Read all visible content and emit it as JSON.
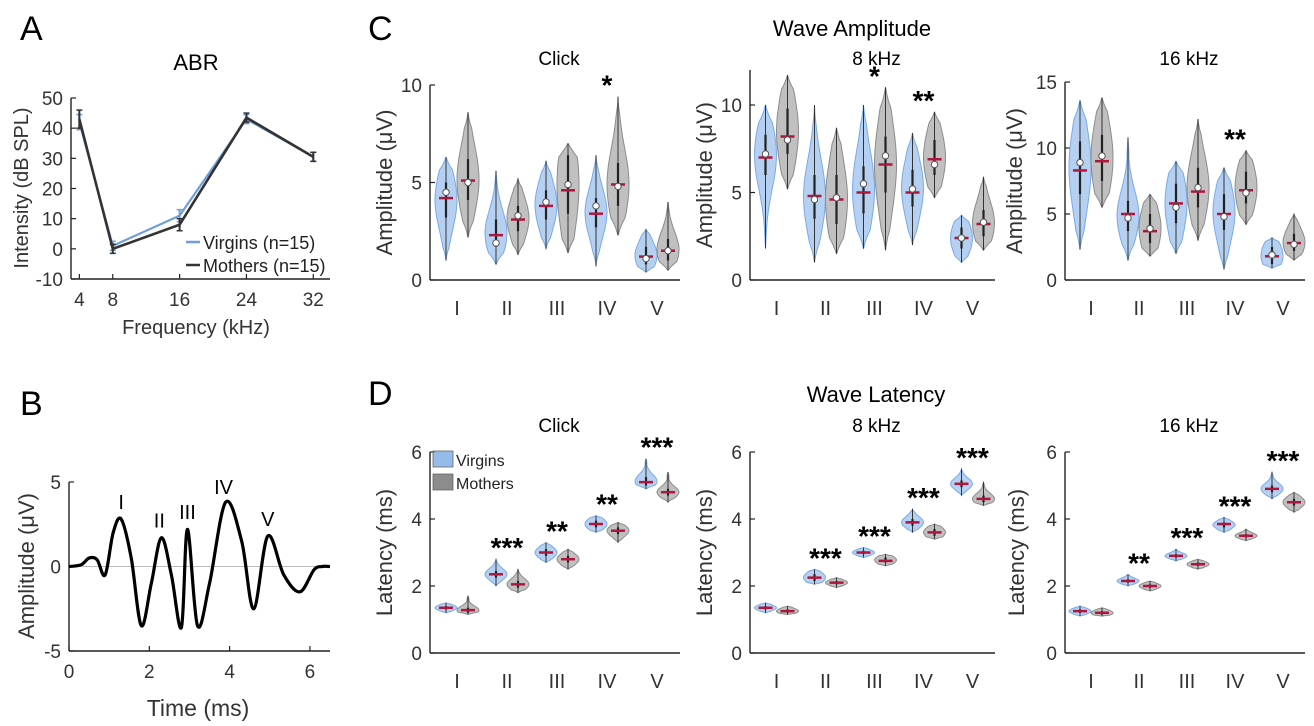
{
  "figure": {
    "panel_letters": [
      "A",
      "B",
      "C",
      "D"
    ],
    "wave_amplitude_title": "Wave Amplitude",
    "wave_latency_title": "Wave Latency"
  },
  "colors": {
    "virgins": "#7aaae6",
    "mothers": "#8c8c8c",
    "virgins_line": "#6f9fd8",
    "mothers_line": "#333333",
    "median": "#b0163d",
    "trace": "#000000"
  },
  "chart_data": [
    {
      "id": "A",
      "type": "line",
      "title": "ABR",
      "xlabel": "Frequency (kHz)",
      "ylabel": "Intensity (dB SPL)",
      "x": [
        4,
        8,
        16,
        24,
        32
      ],
      "xlim": [
        3,
        34
      ],
      "ylim": [
        -10,
        50
      ],
      "xticks": [
        4,
        8,
        16,
        24,
        32
      ],
      "yticks": [
        -10,
        0,
        10,
        20,
        30,
        40,
        50
      ],
      "series": [
        {
          "name": "Virgins (n=15)",
          "values": [
            42,
            1,
            11,
            43,
            30.5
          ],
          "err": [
            2.5,
            1.5,
            2.0,
            1.5,
            1.5
          ]
        },
        {
          "name": "Mothers (n=15)",
          "values": [
            43,
            0,
            8,
            43.5,
            30.5
          ],
          "err": [
            3.0,
            1.5,
            2.0,
            1.5,
            1.5
          ]
        }
      ],
      "legend": "bottom-right",
      "grid": false
    },
    {
      "id": "B",
      "type": "line",
      "xlabel": "Time (ms)",
      "ylabel": "Amplitude (μV)",
      "xlim": [
        0,
        6.5
      ],
      "ylim": [
        -5,
        5
      ],
      "xticks": [
        0,
        2,
        4,
        6
      ],
      "yticks": [
        -5,
        0,
        5
      ],
      "x": [
        0,
        0.3,
        0.5,
        0.7,
        0.9,
        1.1,
        1.3,
        1.55,
        1.8,
        2.05,
        2.3,
        2.55,
        2.8,
        2.95,
        3.2,
        3.5,
        3.9,
        4.3,
        4.6,
        4.95,
        5.35,
        5.75,
        6.1,
        6.3,
        6.5
      ],
      "values": [
        0,
        0.1,
        0.5,
        0.4,
        -0.5,
        2.0,
        2.8,
        0.5,
        -3.5,
        -1.0,
        1.7,
        -0.5,
        -3.6,
        2.2,
        -3.5,
        -1.0,
        3.8,
        1.5,
        -2.5,
        1.8,
        -0.5,
        -1.5,
        -0.2,
        0,
        0
      ],
      "annotations": [
        {
          "text": "I",
          "x": 1.3,
          "y": 3.4
        },
        {
          "text": "II",
          "x": 2.25,
          "y": 2.3
        },
        {
          "text": "III",
          "x": 2.95,
          "y": 2.8
        },
        {
          "text": "IV",
          "x": 3.85,
          "y": 4.3
        },
        {
          "text": "V",
          "x": 4.95,
          "y": 2.4
        }
      ]
    },
    {
      "id": "C1",
      "type": "violin",
      "title": "Click",
      "ylabel": "Amplitude (μV)",
      "categories": [
        "I",
        "II",
        "III",
        "IV",
        "V"
      ],
      "ylim": [
        0,
        10
      ],
      "yticks": [
        0,
        5,
        10
      ],
      "virgins": {
        "median": [
          4.2,
          2.3,
          3.8,
          3.4,
          1.2
        ],
        "mean": [
          4.5,
          1.9,
          4.0,
          3.8,
          1.1
        ],
        "q": [
          [
            3.2,
            5.0
          ],
          [
            1.7,
            3.1
          ],
          [
            3.1,
            4.6
          ],
          [
            2.7,
            4.2
          ],
          [
            0.8,
            1.7
          ]
        ],
        "range": [
          [
            1.0,
            6.3
          ],
          [
            0.8,
            5.6
          ],
          [
            1.6,
            6.1
          ],
          [
            0.7,
            6.4
          ],
          [
            0.4,
            2.6
          ]
        ]
      },
      "mothers": {
        "median": [
          5.1,
          3.1,
          4.6,
          4.9,
          1.5
        ],
        "mean": [
          5.0,
          3.3,
          4.9,
          4.8,
          1.5
        ],
        "q": [
          [
            4.1,
            6.2
          ],
          [
            2.5,
            3.8
          ],
          [
            3.4,
            6.4
          ],
          [
            3.8,
            6.0
          ],
          [
            1.0,
            2.1
          ]
        ],
        "range": [
          [
            2.2,
            8.6
          ],
          [
            1.3,
            5.2
          ],
          [
            1.4,
            7.0
          ],
          [
            2.3,
            9.4
          ],
          [
            0.5,
            4.0
          ]
        ]
      },
      "significance": [
        "",
        "",
        "",
        "*",
        ""
      ]
    },
    {
      "id": "C2",
      "type": "violin",
      "title": "8 kHz",
      "ylabel": "Amplitude (μV)",
      "categories": [
        "I",
        "II",
        "III",
        "IV",
        "V"
      ],
      "ylim": [
        0,
        12
      ],
      "yticks": [
        0,
        5,
        10
      ],
      "virgins": {
        "median": [
          7.0,
          4.8,
          5.0,
          5.0,
          2.4
        ],
        "mean": [
          7.2,
          4.6,
          5.5,
          5.2,
          2.4
        ],
        "q": [
          [
            6.0,
            8.3
          ],
          [
            3.5,
            6.0
          ],
          [
            3.8,
            6.5
          ],
          [
            4.2,
            6.3
          ],
          [
            1.8,
            3.0
          ]
        ],
        "range": [
          [
            1.8,
            10.0
          ],
          [
            1.0,
            10.0
          ],
          [
            1.8,
            10.0
          ],
          [
            2.0,
            8.4
          ],
          [
            1.0,
            3.7
          ]
        ]
      },
      "mothers": {
        "median": [
          8.2,
          4.6,
          6.6,
          6.9,
          3.2
        ],
        "mean": [
          8.0,
          4.7,
          7.1,
          6.6,
          3.3
        ],
        "q": [
          [
            7.2,
            9.8
          ],
          [
            3.2,
            6.0
          ],
          [
            5.0,
            8.2
          ],
          [
            6.0,
            8.0
          ],
          [
            2.5,
            4.0
          ]
        ],
        "range": [
          [
            5.2,
            11.7
          ],
          [
            1.5,
            8.7
          ],
          [
            1.7,
            11.0
          ],
          [
            4.7,
            9.6
          ],
          [
            1.7,
            5.9
          ]
        ]
      },
      "significance": [
        "",
        "",
        "*",
        "**",
        ""
      ]
    },
    {
      "id": "C3",
      "type": "violin",
      "title": "16 kHz",
      "ylabel": "Amplitude (μV)",
      "categories": [
        "I",
        "II",
        "III",
        "IV",
        "V"
      ],
      "ylim": [
        0,
        15
      ],
      "yticks": [
        0,
        5,
        10,
        15
      ],
      "virgins": {
        "median": [
          8.3,
          5.0,
          5.8,
          5.0,
          1.8
        ],
        "mean": [
          8.9,
          4.7,
          5.5,
          4.8,
          1.9
        ],
        "q": [
          [
            6.5,
            10.5
          ],
          [
            3.7,
            6.0
          ],
          [
            4.3,
            7.3
          ],
          [
            3.8,
            6.5
          ],
          [
            1.2,
            2.5
          ]
        ],
        "range": [
          [
            2.3,
            13.6
          ],
          [
            1.5,
            10.8
          ],
          [
            2.0,
            9.0
          ],
          [
            0.8,
            8.5
          ],
          [
            0.9,
            3.2
          ]
        ]
      },
      "mothers": {
        "median": [
          9.0,
          3.7,
          6.7,
          6.8,
          2.8
        ],
        "mean": [
          9.4,
          3.9,
          7.0,
          6.6,
          2.7
        ],
        "q": [
          [
            7.5,
            11.0
          ],
          [
            2.8,
            5.0
          ],
          [
            5.5,
            8.5
          ],
          [
            5.8,
            8.2
          ],
          [
            2.2,
            3.5
          ]
        ],
        "range": [
          [
            5.5,
            13.8
          ],
          [
            1.8,
            6.5
          ],
          [
            3.0,
            12.2
          ],
          [
            4.2,
            9.8
          ],
          [
            1.5,
            5.0
          ]
        ]
      },
      "significance": [
        "",
        "",
        "",
        "**",
        ""
      ]
    },
    {
      "id": "D1",
      "type": "violin",
      "title": "Click",
      "ylabel": "Latency (ms)",
      "categories": [
        "I",
        "II",
        "III",
        "IV",
        "V"
      ],
      "ylim": [
        0,
        6
      ],
      "yticks": [
        0,
        2,
        4,
        6
      ],
      "legend": [
        "Virgins",
        "Mothers"
      ],
      "virgins": {
        "median": [
          1.35,
          2.35,
          3.0,
          3.85,
          5.1
        ],
        "mean": [
          1.35,
          2.35,
          3.0,
          3.85,
          5.1
        ],
        "q": [
          [
            1.3,
            1.4
          ],
          [
            2.25,
            2.45
          ],
          [
            2.9,
            3.1
          ],
          [
            3.75,
            3.95
          ],
          [
            5.0,
            5.25
          ]
        ],
        "range": [
          [
            1.2,
            1.5
          ],
          [
            2.0,
            2.8
          ],
          [
            2.7,
            3.3
          ],
          [
            3.6,
            4.1
          ],
          [
            4.9,
            5.8
          ]
        ]
      },
      "mothers": {
        "median": [
          1.28,
          2.05,
          2.8,
          3.65,
          4.8
        ],
        "mean": [
          1.28,
          2.05,
          2.8,
          3.65,
          4.8
        ],
        "q": [
          [
            1.2,
            1.35
          ],
          [
            1.95,
            2.15
          ],
          [
            2.7,
            2.9
          ],
          [
            3.55,
            3.75
          ],
          [
            4.7,
            4.9
          ]
        ],
        "range": [
          [
            1.15,
            1.7
          ],
          [
            1.8,
            2.5
          ],
          [
            2.5,
            3.1
          ],
          [
            3.3,
            3.9
          ],
          [
            4.5,
            5.4
          ]
        ]
      },
      "significance": [
        "",
        "***",
        "**",
        "**",
        "***"
      ]
    },
    {
      "id": "D2",
      "type": "violin",
      "title": "8 kHz",
      "ylabel": "Latency (ms)",
      "categories": [
        "I",
        "II",
        "III",
        "IV",
        "V"
      ],
      "ylim": [
        0,
        6
      ],
      "yticks": [
        0,
        2,
        4,
        6
      ],
      "virgins": {
        "median": [
          1.35,
          2.25,
          3.0,
          3.9,
          5.05
        ],
        "mean": [
          1.35,
          2.25,
          3.0,
          3.9,
          5.05
        ],
        "q": [
          [
            1.3,
            1.4
          ],
          [
            2.15,
            2.35
          ],
          [
            2.95,
            3.05
          ],
          [
            3.8,
            4.0
          ],
          [
            4.95,
            5.15
          ]
        ],
        "range": [
          [
            1.2,
            1.5
          ],
          [
            2.05,
            2.5
          ],
          [
            2.85,
            3.15
          ],
          [
            3.6,
            4.3
          ],
          [
            4.7,
            5.5
          ]
        ]
      },
      "mothers": {
        "median": [
          1.25,
          2.1,
          2.75,
          3.6,
          4.6
        ],
        "mean": [
          1.25,
          2.1,
          2.75,
          3.6,
          4.6
        ],
        "q": [
          [
            1.2,
            1.3
          ],
          [
            2.05,
            2.15
          ],
          [
            2.7,
            2.85
          ],
          [
            3.5,
            3.7
          ],
          [
            4.5,
            4.7
          ]
        ],
        "range": [
          [
            1.15,
            1.4
          ],
          [
            1.95,
            2.25
          ],
          [
            2.6,
            2.95
          ],
          [
            3.4,
            3.85
          ],
          [
            4.4,
            5.1
          ]
        ]
      },
      "significance": [
        "",
        "***",
        "***",
        "***",
        "***"
      ]
    },
    {
      "id": "D3",
      "type": "violin",
      "title": "16 kHz",
      "ylabel": "Latency (ms)",
      "categories": [
        "I",
        "II",
        "III",
        "IV",
        "V"
      ],
      "ylim": [
        0,
        6
      ],
      "yticks": [
        0,
        2,
        4,
        6
      ],
      "virgins": {
        "median": [
          1.25,
          2.15,
          2.9,
          3.85,
          4.9
        ],
        "mean": [
          1.25,
          2.15,
          2.9,
          3.85,
          4.9
        ],
        "q": [
          [
            1.2,
            1.3
          ],
          [
            2.1,
            2.2
          ],
          [
            2.85,
            2.95
          ],
          [
            3.75,
            3.9
          ],
          [
            4.8,
            5.0
          ]
        ],
        "range": [
          [
            1.1,
            1.4
          ],
          [
            2.0,
            2.35
          ],
          [
            2.75,
            3.1
          ],
          [
            3.6,
            4.05
          ],
          [
            4.6,
            5.4
          ]
        ]
      },
      "mothers": {
        "median": [
          1.2,
          2.0,
          2.65,
          3.5,
          4.5
        ],
        "mean": [
          1.2,
          2.0,
          2.65,
          3.5,
          4.5
        ],
        "q": [
          [
            1.15,
            1.25
          ],
          [
            1.95,
            2.05
          ],
          [
            2.6,
            2.7
          ],
          [
            3.45,
            3.55
          ],
          [
            4.4,
            4.6
          ]
        ],
        "range": [
          [
            1.1,
            1.35
          ],
          [
            1.85,
            2.15
          ],
          [
            2.5,
            2.8
          ],
          [
            3.35,
            3.7
          ],
          [
            4.2,
            4.8
          ]
        ]
      },
      "significance": [
        "",
        "**",
        "***",
        "***",
        "***"
      ]
    }
  ]
}
